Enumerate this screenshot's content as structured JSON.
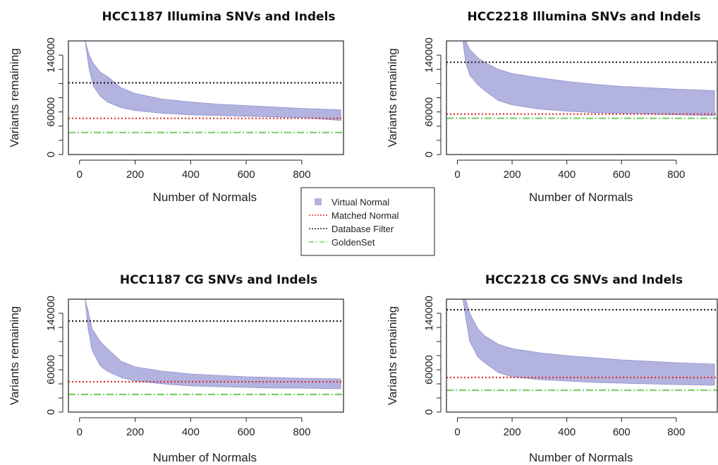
{
  "legend": {
    "entries": [
      {
        "label": "Virtual Normal",
        "color": "#b3b3e0",
        "style": "square"
      },
      {
        "label": "Matched Normal",
        "color": "#e0302a",
        "style": "dotted"
      },
      {
        "label": "Database Filter",
        "color": "#222222",
        "style": "dotted"
      },
      {
        "label": "GoldenSet",
        "color": "#7ccf6a",
        "style": "dotdash"
      }
    ]
  },
  "chart_data": [
    {
      "type": "area",
      "title": "HCC1187 Illumina SNVs and Indels",
      "xlabel": "Number of Normals",
      "ylabel": "Variants remaining",
      "xlim": [
        -40,
        950
      ],
      "ylim": [
        0,
        160000
      ],
      "xticks": [
        0,
        200,
        400,
        600,
        800
      ],
      "yticks": [
        0,
        20000,
        40000,
        60000,
        80000,
        100000,
        120000,
        140000
      ],
      "ytick_labels": [
        "0",
        "",
        "",
        "60000",
        "",
        "",
        "",
        "140000"
      ],
      "band": {
        "name": "Virtual Normal",
        "x": [
          20,
          35,
          50,
          75,
          100,
          150,
          200,
          300,
          400,
          500,
          600,
          700,
          800,
          940
        ],
        "upper": [
          160000,
          140000,
          128000,
          116000,
          110000,
          94000,
          86000,
          78000,
          74000,
          71000,
          69000,
          67000,
          65000,
          63000
        ],
        "lower": [
          160000,
          120000,
          96000,
          82000,
          74000,
          66000,
          62000,
          58000,
          56000,
          55000,
          54000,
          53000,
          52000,
          48000
        ]
      },
      "hlines": {
        "Matched Normal": 51000,
        "Database Filter": 101000,
        "GoldenSet": 31000
      },
      "grid": false
    },
    {
      "type": "area",
      "title": "HCC2218 Illumina SNVs and Indels",
      "xlabel": "Number of Normals",
      "ylabel": "Variants remaining",
      "xlim": [
        -40,
        950
      ],
      "ylim": [
        0,
        160000
      ],
      "xticks": [
        0,
        200,
        400,
        600,
        800
      ],
      "yticks": [
        0,
        20000,
        40000,
        60000,
        80000,
        100000,
        120000,
        140000
      ],
      "ytick_labels": [
        "0",
        "",
        "",
        "60000",
        "",
        "",
        "",
        "140000"
      ],
      "band": {
        "name": "Virtual Normal",
        "x": [
          20,
          30,
          45,
          75,
          100,
          150,
          200,
          300,
          400,
          500,
          600,
          700,
          800,
          940
        ],
        "upper": [
          160000,
          160000,
          148000,
          136000,
          130000,
          120000,
          114000,
          108000,
          103000,
          99000,
          96000,
          94000,
          92000,
          90000
        ],
        "lower": [
          160000,
          130000,
          112000,
          98000,
          90000,
          76000,
          70000,
          64000,
          61000,
          59000,
          58000,
          57000,
          56000,
          55000
        ]
      },
      "hlines": {
        "Matched Normal": 57000,
        "Database Filter": 130000,
        "GoldenSet": 51000
      },
      "grid": false
    },
    {
      "type": "area",
      "title": "HCC1187 CG SNVs and Indels",
      "xlabel": "Number of Normals",
      "ylabel": "Variants remaining",
      "xlim": [
        -40,
        950
      ],
      "ylim": [
        0,
        160000
      ],
      "xticks": [
        0,
        200,
        400,
        600,
        800
      ],
      "yticks": [
        0,
        20000,
        40000,
        60000,
        80000,
        100000,
        120000,
        140000
      ],
      "ytick_labels": [
        "0",
        "",
        "",
        "60000",
        "",
        "",
        "",
        "140000"
      ],
      "band": {
        "name": "Virtual Normal",
        "x": [
          20,
          30,
          45,
          75,
          100,
          150,
          200,
          300,
          400,
          500,
          600,
          700,
          800,
          940
        ],
        "upper": [
          160000,
          145000,
          118000,
          100000,
          90000,
          72000,
          64000,
          58000,
          54000,
          52000,
          50000,
          49000,
          48000,
          47000
        ],
        "lower": [
          160000,
          120000,
          88000,
          65000,
          58000,
          49000,
          44000,
          40000,
          37000,
          36000,
          35000,
          34000,
          34000,
          33000
        ]
      },
      "hlines": {
        "Matched Normal": 43000,
        "Database Filter": 129000,
        "GoldenSet": 25000
      },
      "grid": false
    },
    {
      "type": "area",
      "title": "HCC2218 CG SNVs and Indels",
      "xlabel": "Number of Normals",
      "ylabel": "Variants remaining",
      "xlim": [
        -40,
        950
      ],
      "ylim": [
        0,
        160000
      ],
      "xticks": [
        0,
        200,
        400,
        600,
        800
      ],
      "yticks": [
        0,
        20000,
        40000,
        60000,
        80000,
        100000,
        120000,
        140000
      ],
      "ytick_labels": [
        "0",
        "",
        "",
        "60000",
        "",
        "",
        "",
        "140000"
      ],
      "band": {
        "name": "Virtual Normal",
        "x": [
          20,
          30,
          45,
          75,
          100,
          150,
          200,
          300,
          400,
          500,
          600,
          700,
          800,
          940
        ],
        "upper": [
          160000,
          160000,
          140000,
          118000,
          108000,
          96000,
          90000,
          84000,
          80000,
          77000,
          74000,
          72000,
          70000,
          68000
        ],
        "lower": [
          160000,
          135000,
          100000,
          78000,
          70000,
          56000,
          50000,
          46000,
          44000,
          42000,
          41000,
          40000,
          39000,
          38000
        ]
      },
      "hlines": {
        "Matched Normal": 49000,
        "Database Filter": 145000,
        "GoldenSet": 31000
      },
      "grid": false
    }
  ]
}
